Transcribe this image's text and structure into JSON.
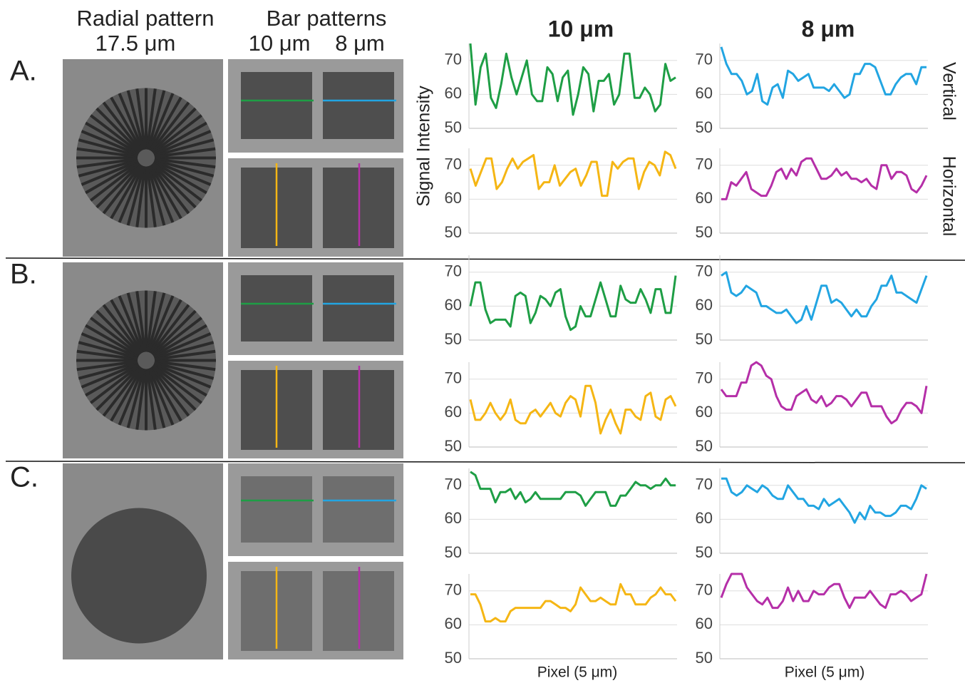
{
  "figure": {
    "radial_title": "Radial pattern",
    "radial_size": "17.5 μm",
    "bar_title": "Bar patterns",
    "bar_sizes": [
      "10 μm",
      "8 μm"
    ],
    "panel_labels": [
      "A.",
      "B.",
      "C."
    ],
    "column_titles": [
      "10 μm",
      "8 μm"
    ],
    "y_label": "Signal Intensity",
    "x_label": "Pixel (5 μm)",
    "orientation_labels": [
      "Vertical",
      "Horizontal"
    ]
  },
  "chart_data": [
    {
      "type": "line",
      "color": "#1e9e45",
      "ylim": [
        50,
        75
      ],
      "yticks": [
        50,
        60,
        70
      ],
      "grid": true,
      "values": [
        75,
        57,
        68,
        72,
        59,
        56,
        63,
        72,
        65,
        60,
        65,
        70,
        60,
        58,
        58,
        68,
        66,
        58,
        65,
        67,
        54,
        60,
        68,
        66,
        55,
        64,
        64,
        66,
        57,
        60,
        72,
        72,
        59,
        59,
        62,
        60,
        55,
        57,
        69,
        64,
        65
      ]
    },
    {
      "type": "line",
      "color": "#22a5e2",
      "ylim": [
        50,
        75
      ],
      "yticks": [
        50,
        60,
        70
      ],
      "grid": true,
      "values": [
        74,
        69,
        66,
        66,
        64,
        60,
        61,
        66,
        58,
        57,
        62,
        63,
        59,
        67,
        66,
        64,
        65,
        66,
        62,
        62,
        62,
        61,
        63,
        61,
        59,
        60,
        66,
        66,
        69,
        69,
        68,
        64,
        60,
        60,
        63,
        65,
        66,
        66,
        63,
        68,
        68
      ]
    },
    {
      "type": "line",
      "color": "#f5b614",
      "ylim": [
        50,
        75
      ],
      "yticks": [
        50,
        60,
        70
      ],
      "grid": true,
      "values": [
        69,
        64,
        68,
        72,
        72,
        63,
        65,
        69,
        72,
        69,
        71,
        72,
        73,
        63,
        65,
        65,
        70,
        64,
        66,
        68,
        69,
        64,
        67,
        71,
        71,
        61,
        61,
        71,
        69,
        71,
        72,
        72,
        63,
        68,
        71,
        70,
        67,
        74,
        73,
        69
      ]
    },
    {
      "type": "line",
      "color": "#b52fa8",
      "ylim": [
        50,
        75
      ],
      "yticks": [
        50,
        60,
        70
      ],
      "grid": true,
      "values": [
        60,
        60,
        65,
        64,
        66,
        68,
        63,
        62,
        61,
        61,
        64,
        68,
        69,
        66,
        69,
        67,
        71,
        72,
        72,
        69,
        66,
        66,
        67,
        69,
        67,
        68,
        66,
        66,
        65,
        66,
        64,
        63,
        70,
        70,
        66,
        68,
        68,
        67,
        63,
        62,
        64,
        67
      ]
    },
    {
      "type": "line",
      "color": "#1e9e45",
      "ylim": [
        50,
        75
      ],
      "yticks": [
        50,
        60,
        70
      ],
      "grid": true,
      "values": [
        60,
        67,
        67,
        59,
        55,
        56,
        56,
        56,
        54,
        63,
        64,
        63,
        55,
        58,
        63,
        62,
        60,
        64,
        65,
        57,
        53,
        54,
        60,
        57,
        57,
        62,
        67,
        62,
        57,
        57,
        66,
        62,
        61,
        61,
        65,
        62,
        58,
        65,
        65,
        58,
        58,
        69
      ]
    },
    {
      "type": "line",
      "color": "#22a5e2",
      "ylim": [
        50,
        75
      ],
      "yticks": [
        50,
        60,
        70
      ],
      "grid": true,
      "values": [
        69,
        70,
        64,
        63,
        64,
        66,
        65,
        64,
        60,
        60,
        59,
        58,
        58,
        59,
        57,
        55,
        56,
        60,
        56,
        61,
        66,
        66,
        61,
        62,
        61,
        59,
        57,
        59,
        57,
        57,
        60,
        62,
        66,
        66,
        69,
        64,
        64,
        63,
        62,
        61,
        65,
        69
      ]
    },
    {
      "type": "line",
      "color": "#f5b614",
      "ylim": [
        50,
        75
      ],
      "yticks": [
        50,
        60,
        70
      ],
      "grid": true,
      "values": [
        64,
        58,
        58,
        60,
        63,
        60,
        58,
        60,
        64,
        58,
        57,
        57,
        60,
        61,
        59,
        61,
        63,
        60,
        59,
        63,
        65,
        64,
        59,
        68,
        68,
        63,
        54,
        58,
        61,
        57,
        54,
        61,
        61,
        59,
        58,
        65,
        66,
        59,
        58,
        64,
        65,
        62
      ]
    },
    {
      "type": "line",
      "color": "#b52fa8",
      "ylim": [
        50,
        75
      ],
      "yticks": [
        50,
        60,
        70
      ],
      "grid": true,
      "values": [
        67,
        65,
        65,
        65,
        69,
        69,
        74,
        75,
        74,
        71,
        70,
        65,
        62,
        61,
        61,
        65,
        66,
        67,
        64,
        63,
        65,
        62,
        63,
        65,
        65,
        64,
        62,
        64,
        66,
        66,
        62,
        62,
        62,
        59,
        57,
        58,
        61,
        63,
        63,
        62,
        60,
        68
      ]
    },
    {
      "type": "line",
      "color": "#1e9e45",
      "ylim": [
        50,
        75
      ],
      "yticks": [
        50,
        60,
        70
      ],
      "grid": true,
      "values": [
        74,
        73,
        69,
        69,
        69,
        65,
        68,
        68,
        69,
        66,
        68,
        65,
        66,
        68,
        66,
        66,
        66,
        66,
        66,
        68,
        68,
        68,
        67,
        64,
        66,
        68,
        68,
        68,
        64,
        64,
        67,
        67,
        69,
        71,
        70,
        70,
        69,
        70,
        70,
        72,
        70,
        70
      ]
    },
    {
      "type": "line",
      "color": "#22a5e2",
      "ylim": [
        50,
        75
      ],
      "yticks": [
        50,
        60,
        70
      ],
      "grid": true,
      "values": [
        72,
        72,
        68,
        67,
        68,
        70,
        69,
        68,
        70,
        69,
        67,
        66,
        66,
        70,
        68,
        66,
        66,
        64,
        64,
        63,
        66,
        64,
        65,
        66,
        64,
        62,
        59,
        62,
        60,
        64,
        62,
        62,
        61,
        61,
        62,
        64,
        64,
        63,
        66,
        70,
        69
      ]
    },
    {
      "type": "line",
      "color": "#f5b614",
      "ylim": [
        50,
        75
      ],
      "yticks": [
        50,
        60,
        70
      ],
      "grid": true,
      "values": [
        69,
        69,
        66,
        61,
        61,
        62,
        61,
        61,
        64,
        65,
        65,
        65,
        65,
        65,
        65,
        67,
        67,
        66,
        65,
        65,
        64,
        66,
        71,
        69,
        67,
        67,
        68,
        67,
        66,
        66,
        72,
        69,
        69,
        66,
        66,
        66,
        68,
        69,
        71,
        69,
        69,
        67
      ]
    },
    {
      "type": "line",
      "color": "#b52fa8",
      "ylim": [
        50,
        75
      ],
      "yticks": [
        50,
        60,
        70
      ],
      "grid": true,
      "values": [
        68,
        72,
        75,
        75,
        75,
        71,
        69,
        67,
        66,
        68,
        65,
        65,
        67,
        71,
        67,
        70,
        67,
        67,
        70,
        69,
        69,
        71,
        72,
        72,
        68,
        65,
        68,
        68,
        68,
        70,
        68,
        66,
        65,
        69,
        69,
        70,
        69,
        67,
        68,
        69,
        75
      ]
    }
  ]
}
